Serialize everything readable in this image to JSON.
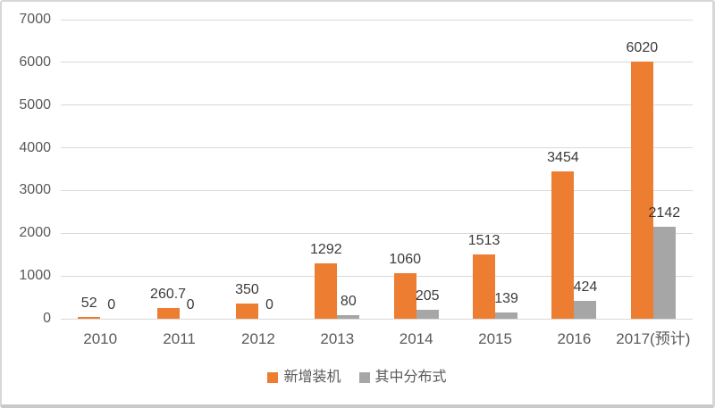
{
  "chart_data": {
    "type": "bar",
    "title": "",
    "categories": [
      "2010",
      "2011",
      "2012",
      "2013",
      "2014",
      "2015",
      "2016",
      "2017(预计)"
    ],
    "series": [
      {
        "name": "新增装机",
        "color": "#ED7D31",
        "values": [
          52,
          260.7,
          350,
          1292,
          1060,
          1513,
          3454,
          6020
        ],
        "labels": [
          "52",
          "260.7",
          "350",
          "1292",
          "1060",
          "1513",
          "3454",
          "6020"
        ]
      },
      {
        "name": "其中分布式",
        "color": "#A6A6A6",
        "values": [
          0,
          0,
          0,
          80,
          205,
          139,
          424,
          2142
        ],
        "labels": [
          "0",
          "0",
          "0",
          "80",
          "205",
          "139",
          "424",
          "2142"
        ]
      }
    ],
    "ylim": [
      0,
      7000
    ],
    "yticks": [
      0,
      1000,
      2000,
      3000,
      4000,
      5000,
      6000,
      7000
    ],
    "grid": true,
    "data_labels": true,
    "legend_position": "bottom",
    "colors": {
      "grid_line": "#d9d9d9",
      "axis_label": "#595959",
      "data_label": "#3b3b3b",
      "background": "#ffffff"
    }
  }
}
